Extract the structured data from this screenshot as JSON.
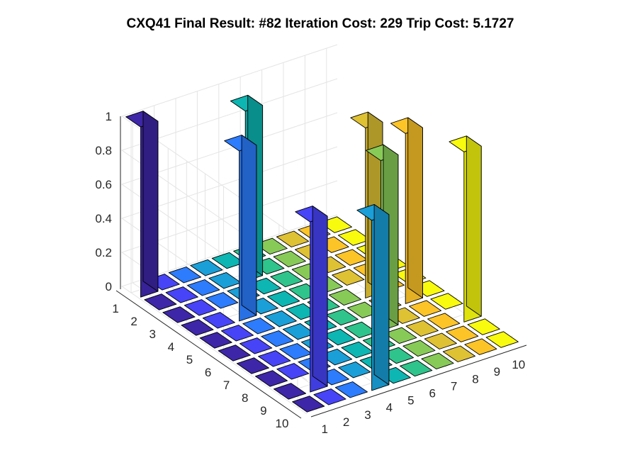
{
  "chart_data": {
    "type": "bar3",
    "title": "CXQ41 Final Result: #82 Iteration Cost: 229 Trip Cost: 5.1727",
    "xlabel": "",
    "ylabel": "",
    "zlabel": "",
    "row_ticks": [
      "1",
      "2",
      "3",
      "4",
      "5",
      "6",
      "7",
      "8",
      "9",
      "10"
    ],
    "col_ticks": [
      "1",
      "2",
      "3",
      "4",
      "5",
      "6",
      "7",
      "8",
      "9",
      "10"
    ],
    "z_ticks": [
      "0",
      "0.2",
      "0.4",
      "0.6",
      "0.8",
      "1"
    ],
    "zlim": [
      0,
      1
    ],
    "grid": true,
    "colormap": "parula",
    "values": [
      [
        1,
        0,
        0,
        0,
        0,
        0,
        0,
        0,
        0,
        0
      ],
      [
        0,
        0,
        0,
        0,
        1,
        0,
        0,
        0,
        0,
        0
      ],
      [
        0,
        0,
        0,
        0,
        0,
        0,
        0,
        0,
        0,
        0
      ],
      [
        0,
        0,
        1,
        0,
        0,
        0,
        0,
        0,
        0,
        0
      ],
      [
        0,
        0,
        0,
        0,
        0,
        0,
        0,
        1,
        0,
        0
      ],
      [
        0,
        0,
        0,
        0,
        0,
        0,
        0,
        0,
        1,
        0
      ],
      [
        0,
        0,
        0,
        0,
        0,
        0,
        1,
        0,
        0,
        0
      ],
      [
        0,
        0,
        0,
        0,
        0,
        0,
        0,
        0,
        0,
        1
      ],
      [
        0,
        1,
        0,
        0,
        0,
        0,
        0,
        0,
        0,
        0
      ],
      [
        0,
        0,
        0,
        1,
        0,
        0,
        0,
        0,
        0,
        0
      ]
    ]
  }
}
